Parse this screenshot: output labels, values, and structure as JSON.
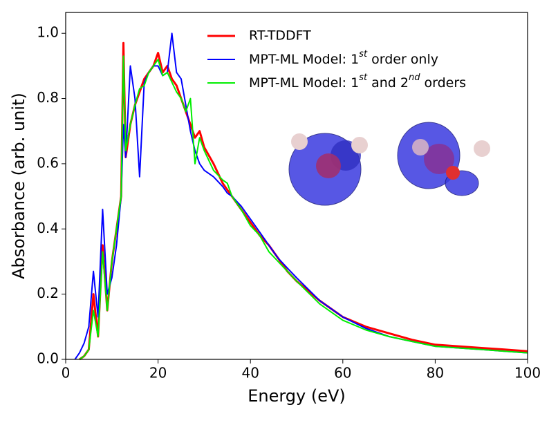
{
  "chart_data": {
    "type": "line",
    "xlabel": "Energy (eV)",
    "ylabel": "Absorbance (arb. unit)",
    "x": [
      2,
      3,
      4,
      5,
      6,
      7,
      8,
      9,
      10,
      11,
      12,
      12.5,
      13,
      14,
      15,
      16,
      17,
      18,
      19,
      20,
      21,
      22,
      23,
      24,
      25,
      26,
      27,
      28,
      29,
      30,
      32,
      34,
      35,
      36,
      38,
      40,
      42,
      44,
      46,
      48,
      50,
      55,
      60,
      65,
      70,
      75,
      80,
      85,
      90,
      95,
      100
    ],
    "series": [
      {
        "name": "RT-TDDFT",
        "color": "#ff0000",
        "values": [
          null,
          0,
          0.01,
          0.03,
          0.2,
          0.07,
          0.35,
          0.15,
          0.3,
          0.4,
          0.5,
          0.97,
          0.62,
          0.72,
          0.78,
          0.82,
          0.86,
          0.88,
          0.9,
          0.94,
          0.88,
          0.9,
          0.86,
          0.84,
          0.8,
          0.76,
          0.72,
          0.68,
          0.7,
          0.65,
          0.6,
          0.54,
          0.52,
          0.5,
          0.46,
          0.42,
          0.38,
          0.35,
          0.31,
          0.27,
          0.24,
          0.18,
          0.13,
          0.1,
          0.08,
          0.06,
          0.045,
          0.04,
          0.035,
          0.03,
          0.025
        ]
      },
      {
        "name": "MPT-ML Model: 1st order only",
        "color": "#0000ff",
        "values": [
          0,
          0.02,
          0.05,
          0.1,
          0.27,
          0.13,
          0.46,
          0.2,
          0.25,
          0.35,
          0.5,
          0.72,
          0.62,
          0.9,
          0.8,
          0.56,
          0.85,
          0.88,
          0.9,
          0.9,
          0.87,
          0.88,
          1.0,
          0.88,
          0.86,
          0.78,
          0.7,
          0.64,
          0.6,
          0.58,
          0.56,
          0.53,
          0.51,
          0.5,
          0.47,
          0.43,
          0.39,
          0.35,
          0.31,
          0.28,
          0.25,
          0.18,
          0.13,
          0.095,
          0.07,
          0.055,
          0.04,
          0.035,
          0.03,
          0.025,
          0.02
        ]
      },
      {
        "name": "MPT-ML Model: 1st and 2nd orders",
        "color": "#00ee00",
        "values": [
          null,
          0,
          0.01,
          0.03,
          0.15,
          0.07,
          0.33,
          0.15,
          0.3,
          0.4,
          0.5,
          0.93,
          0.64,
          0.72,
          0.78,
          0.83,
          0.84,
          0.88,
          0.9,
          0.92,
          0.87,
          0.88,
          0.85,
          0.82,
          0.8,
          0.76,
          0.8,
          0.6,
          0.68,
          0.64,
          0.58,
          0.55,
          0.54,
          0.5,
          0.46,
          0.41,
          0.38,
          0.33,
          0.3,
          0.27,
          0.24,
          0.17,
          0.12,
          0.09,
          0.07,
          0.055,
          0.04,
          0.035,
          0.03,
          0.025,
          0.02
        ]
      }
    ],
    "xlim": [
      0,
      100
    ],
    "xticks": [
      0,
      20,
      40,
      60,
      80,
      100
    ],
    "ylim": [
      0,
      1.064
    ],
    "yticks": [
      {
        "value": 0,
        "label": "0.0"
      },
      {
        "value": 0.2,
        "label": "0.2"
      },
      {
        "value": 0.4,
        "label": "0.4"
      },
      {
        "value": 0.6,
        "label": "0.6"
      },
      {
        "value": 0.8,
        "label": "0.8"
      },
      {
        "value": 1.0,
        "label": "1.0"
      }
    ],
    "legend": "upper right"
  }
}
